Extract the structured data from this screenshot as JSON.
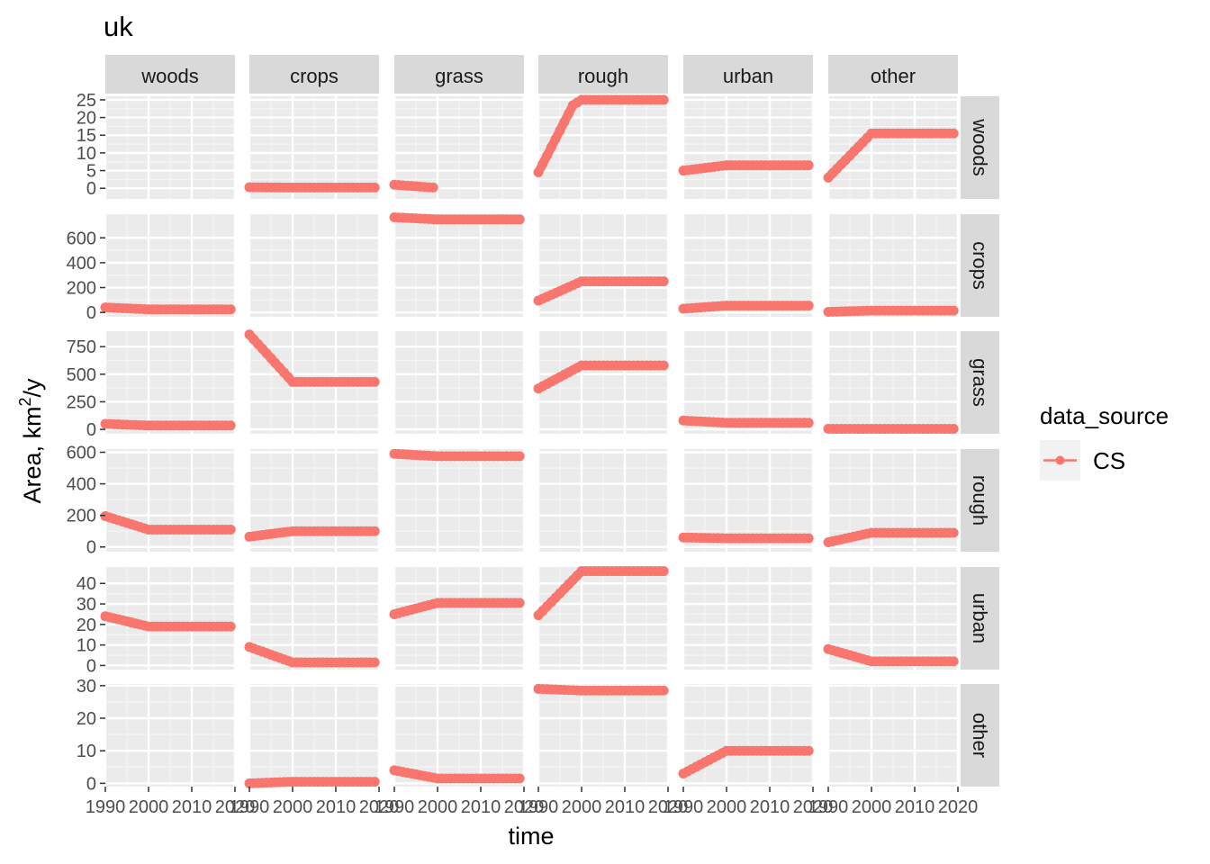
{
  "title": "uk",
  "chart_data": {
    "type": "line",
    "title": "uk",
    "xlabel": "time",
    "ylabel_main": "Area,  km",
    "ylabel_sup": "2",
    "ylabel_tail": "/y",
    "column_facets": [
      "woods",
      "crops",
      "grass",
      "rough",
      "urban",
      "other"
    ],
    "row_facets": [
      "woods",
      "crops",
      "grass",
      "rough",
      "urban",
      "other"
    ],
    "x_ticks": [
      "1990",
      "2000",
      "2010",
      "2020"
    ],
    "xlim": [
      1990,
      2020
    ],
    "series_name": "CS",
    "series_color": "#F8766D",
    "row_axes": [
      {
        "ylim": [
          -3,
          26
        ],
        "ticks": [
          0,
          5,
          10,
          15,
          20,
          25
        ]
      },
      {
        "ylim": [
          -35,
          790
        ],
        "ticks": [
          0,
          200,
          400,
          600
        ]
      },
      {
        "ylim": [
          -40,
          890
        ],
        "ticks": [
          0,
          250,
          500,
          750
        ]
      },
      {
        "ylim": [
          -30,
          620
        ],
        "ticks": [
          0,
          200,
          400,
          600
        ]
      },
      {
        "ylim": [
          -2,
          48
        ],
        "ticks": [
          0,
          10,
          20,
          30,
          40
        ]
      },
      {
        "ylim": [
          -1,
          30.5
        ],
        "ticks": [
          0,
          10,
          20,
          30
        ]
      }
    ],
    "panels": [
      {
        "row": 0,
        "col": 0,
        "points": []
      },
      {
        "row": 0,
        "col": 1,
        "points": [
          [
            1990,
            0.3
          ],
          [
            2000,
            0.2
          ],
          [
            2019,
            0.2
          ]
        ]
      },
      {
        "row": 0,
        "col": 2,
        "points": [
          [
            1990,
            1.0
          ],
          [
            1999,
            0.2
          ]
        ]
      },
      {
        "row": 0,
        "col": 3,
        "points": [
          [
            1990,
            4.5
          ],
          [
            1998,
            23.5
          ],
          [
            2000,
            25
          ],
          [
            2019,
            25
          ]
        ]
      },
      {
        "row": 0,
        "col": 4,
        "points": [
          [
            1990,
            5.0
          ],
          [
            2000,
            6.5
          ],
          [
            2019,
            6.5
          ]
        ]
      },
      {
        "row": 0,
        "col": 5,
        "points": [
          [
            1990,
            3.0
          ],
          [
            2000,
            15.5
          ],
          [
            2019,
            15.5
          ]
        ]
      },
      {
        "row": 1,
        "col": 0,
        "points": [
          [
            1990,
            40
          ],
          [
            2000,
            25
          ],
          [
            2019,
            25
          ]
        ]
      },
      {
        "row": 1,
        "col": 1,
        "points": []
      },
      {
        "row": 1,
        "col": 2,
        "points": [
          [
            1990,
            765
          ],
          [
            2000,
            748
          ],
          [
            2019,
            748
          ]
        ]
      },
      {
        "row": 1,
        "col": 3,
        "points": [
          [
            1990,
            95
          ],
          [
            2000,
            250
          ],
          [
            2019,
            250
          ]
        ]
      },
      {
        "row": 1,
        "col": 4,
        "points": [
          [
            1990,
            30
          ],
          [
            2000,
            55
          ],
          [
            2019,
            55
          ]
        ]
      },
      {
        "row": 1,
        "col": 5,
        "points": [
          [
            1990,
            5
          ],
          [
            2000,
            15
          ],
          [
            2019,
            15
          ]
        ]
      },
      {
        "row": 2,
        "col": 0,
        "points": [
          [
            1990,
            50
          ],
          [
            2000,
            35
          ],
          [
            2019,
            35
          ]
        ]
      },
      {
        "row": 2,
        "col": 1,
        "points": [
          [
            1990,
            860
          ],
          [
            2000,
            430
          ],
          [
            2019,
            430
          ]
        ]
      },
      {
        "row": 2,
        "col": 2,
        "points": []
      },
      {
        "row": 2,
        "col": 3,
        "points": [
          [
            1990,
            370
          ],
          [
            2000,
            580
          ],
          [
            2019,
            580
          ]
        ]
      },
      {
        "row": 2,
        "col": 4,
        "points": [
          [
            1990,
            80
          ],
          [
            2000,
            60
          ],
          [
            2019,
            60
          ]
        ]
      },
      {
        "row": 2,
        "col": 5,
        "points": [
          [
            1990,
            5
          ],
          [
            2000,
            5
          ],
          [
            2019,
            5
          ]
        ]
      },
      {
        "row": 3,
        "col": 0,
        "points": [
          [
            1990,
            195
          ],
          [
            2000,
            110
          ],
          [
            2019,
            110
          ]
        ]
      },
      {
        "row": 3,
        "col": 1,
        "points": [
          [
            1990,
            65
          ],
          [
            2000,
            100
          ],
          [
            2019,
            100
          ]
        ]
      },
      {
        "row": 3,
        "col": 2,
        "points": [
          [
            1990,
            590
          ],
          [
            2000,
            575
          ],
          [
            2019,
            575
          ]
        ]
      },
      {
        "row": 3,
        "col": 3,
        "points": []
      },
      {
        "row": 3,
        "col": 4,
        "points": [
          [
            1990,
            60
          ],
          [
            2000,
            55
          ],
          [
            2019,
            55
          ]
        ]
      },
      {
        "row": 3,
        "col": 5,
        "points": [
          [
            1990,
            30
          ],
          [
            2000,
            90
          ],
          [
            2019,
            90
          ]
        ]
      },
      {
        "row": 4,
        "col": 0,
        "points": [
          [
            1990,
            24
          ],
          [
            2000,
            19
          ],
          [
            2019,
            19
          ]
        ]
      },
      {
        "row": 4,
        "col": 1,
        "points": [
          [
            1990,
            9
          ],
          [
            2000,
            1.5
          ],
          [
            2019,
            1.5
          ]
        ]
      },
      {
        "row": 4,
        "col": 2,
        "points": [
          [
            1990,
            25
          ],
          [
            2000,
            30.5
          ],
          [
            2019,
            30.5
          ]
        ]
      },
      {
        "row": 4,
        "col": 3,
        "points": [
          [
            1990,
            24.5
          ],
          [
            2000,
            46
          ],
          [
            2019,
            46
          ]
        ]
      },
      {
        "row": 4,
        "col": 4,
        "points": []
      },
      {
        "row": 4,
        "col": 5,
        "points": [
          [
            1990,
            8
          ],
          [
            2000,
            2
          ],
          [
            2019,
            2
          ]
        ]
      },
      {
        "row": 5,
        "col": 0,
        "points": []
      },
      {
        "row": 5,
        "col": 1,
        "points": [
          [
            1990,
            0
          ],
          [
            2000,
            0.5
          ],
          [
            2019,
            0.5
          ]
        ]
      },
      {
        "row": 5,
        "col": 2,
        "points": [
          [
            1990,
            4
          ],
          [
            2000,
            1.5
          ],
          [
            2019,
            1.5
          ]
        ]
      },
      {
        "row": 5,
        "col": 3,
        "points": [
          [
            1990,
            29
          ],
          [
            2000,
            28.5
          ],
          [
            2019,
            28.5
          ]
        ]
      },
      {
        "row": 5,
        "col": 4,
        "points": [
          [
            1990,
            3
          ],
          [
            2000,
            10
          ],
          [
            2019,
            10
          ]
        ]
      },
      {
        "row": 5,
        "col": 5,
        "points": []
      }
    ],
    "legend": {
      "title": "data_source",
      "entries": [
        "CS"
      ],
      "position": "right"
    },
    "grid": true
  }
}
